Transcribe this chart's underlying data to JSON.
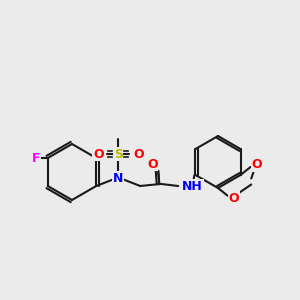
{
  "background_color": "#ebebeb",
  "bond_color": "#1a1a1a",
  "bond_width": 1.5,
  "atom_colors": {
    "N": "#0000ff",
    "O": "#ff0000",
    "F": "#ff00ff",
    "S": "#b8b800",
    "H": "#4a8a8a",
    "C": "#1a1a1a"
  },
  "font_size": 9,
  "font_size_small": 7.5
}
